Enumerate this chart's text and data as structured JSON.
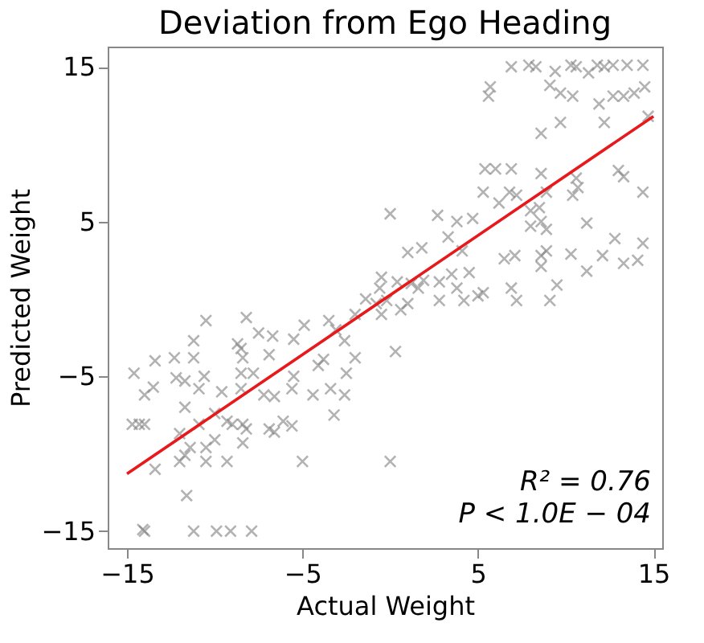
{
  "chart_data": {
    "type": "scatter",
    "title": "Deviation from Ego Heading",
    "xlabel": "Actual Weight",
    "ylabel": "Predicted Weight",
    "xlim": [
      -16.1,
      15.5
    ],
    "ylim": [
      -16.1,
      16.3
    ],
    "xticks": [
      -15,
      -5,
      5,
      15
    ],
    "yticks": [
      -15,
      -5,
      5,
      15
    ],
    "grid": false,
    "marker": "cross",
    "annotations": [
      "R² = 0.76",
      "P < 1.0E − 04"
    ],
    "series": [
      {
        "color": "#808080",
        "x": [
          6.9,
          7.9,
          8.3,
          9.4,
          10.3,
          10.6,
          11.3,
          11.8,
          12.2,
          12.7,
          13.5,
          14.4,
          5.7,
          5.6,
          9.1,
          9.7,
          10.4,
          11.9,
          12.7,
          13.3,
          13.9,
          14.5,
          14.7,
          12.2,
          9.7,
          8.6,
          5.4,
          6.0,
          6.9,
          8.6,
          5.3,
          6.8,
          7.2,
          6.2,
          8.0,
          8.5,
          8.6,
          8.0,
          8.9,
          8.9,
          10.6,
          10.4,
          10.7,
          11.2,
          13.0,
          13.3,
          14.4,
          0.0,
          2.7,
          3.8,
          4.7,
          3.3,
          4.1,
          1.0,
          1.8,
          6.5,
          7.1,
          8.6,
          8.9,
          8.6,
          10.3,
          11.2,
          12.1,
          12.8,
          13.3,
          14.1,
          14.4,
          -0.5,
          0.4,
          1.2,
          1.9,
          2.8,
          3.5,
          4.5,
          3.8,
          4.2,
          5.0,
          5.3,
          2.8,
          6.9,
          7.2,
          9.1,
          9.5,
          -0.8,
          -0.2,
          0.6,
          1.0,
          1.6,
          -0.5,
          -10.5,
          -8.2,
          -14.6,
          -13.5,
          -13.4,
          -12.3,
          -11.2,
          -11.2,
          -12.2,
          -11.7,
          -14.0,
          -10.6,
          -10.9,
          -11.7,
          -9.6,
          -10.0,
          -8.7,
          -8.5,
          -8.4,
          -7.5,
          -6.7,
          -6.9,
          -5.5,
          -4.9,
          -8.5,
          -7.8,
          -8.5,
          -7.2,
          -6.6,
          -5.6,
          -5.5,
          -4.1,
          -3.8,
          -4.4,
          -3.4,
          -2.6,
          -2.5,
          -2.0,
          -2.6,
          -3.5,
          -3.1,
          -14.7,
          -14.3,
          -14.0,
          -10.9,
          -9.3,
          -9.0,
          -8.4,
          -8.2,
          -6.9,
          -6.6,
          -6.1,
          -5.6,
          -3.2,
          -12.0,
          -11.4,
          -11.7,
          -10.5,
          -10.0,
          -8.4,
          -12.0,
          -13.4,
          -10.5,
          -9.3,
          -5.0,
          -11.6,
          -14.1,
          -14.0,
          -11.2,
          -9.9,
          -9.1,
          -7.9,
          -2.0,
          -1.4,
          -0.6,
          0.3,
          0.0
        ],
        "values": [
          15.0,
          15.1,
          15.0,
          14.7,
          15.1,
          15.0,
          14.6,
          15.1,
          15.0,
          15.1,
          15.1,
          15.1,
          13.7,
          13.1,
          13.8,
          13.3,
          13.1,
          12.6,
          13.1,
          13.1,
          13.3,
          13.7,
          11.8,
          11.4,
          11.4,
          10.7,
          8.4,
          8.4,
          8.4,
          8.1,
          6.9,
          6.9,
          6.7,
          6.2,
          5.7,
          5.9,
          5.0,
          4.7,
          4.5,
          6.9,
          7.8,
          6.7,
          7.2,
          4.9,
          8.3,
          7.9,
          6.9,
          5.5,
          5.4,
          5.0,
          5.2,
          4.0,
          3.1,
          3.0,
          3.3,
          2.6,
          2.8,
          2.8,
          3.1,
          2.1,
          2.9,
          1.8,
          2.8,
          3.9,
          2.3,
          2.5,
          3.6,
          1.4,
          1.1,
          1.0,
          1.2,
          1.1,
          1.6,
          1.7,
          0.7,
          -0.1,
          0.2,
          0.4,
          -0.1,
          0.7,
          -0.1,
          -0.1,
          0.9,
          -0.3,
          -0.1,
          -0.7,
          -0.3,
          0.7,
          -1.0,
          -1.4,
          -1.2,
          -4.8,
          -5.7,
          -4.0,
          -3.8,
          -2.7,
          -3.8,
          -5.1,
          -5.3,
          -6.2,
          -5.0,
          -5.8,
          -7.0,
          -6.0,
          -7.4,
          -2.9,
          -3.2,
          -3.8,
          -2.2,
          -2.4,
          -3.6,
          -2.6,
          -1.7,
          -4.8,
          -4.8,
          -5.8,
          -6.2,
          -6.3,
          -5.8,
          -5.0,
          -4.3,
          -3.9,
          -6.2,
          -5.8,
          -6.2,
          -4.8,
          -3.8,
          -2.7,
          -1.4,
          -2.0,
          -8.1,
          -8.1,
          -8.1,
          -8.1,
          -7.9,
          -8.1,
          -8.1,
          -8.4,
          -8.4,
          -8.6,
          -7.9,
          -8.2,
          -7.5,
          -8.7,
          -9.6,
          -10.1,
          -9.6,
          -9.1,
          -9.3,
          -10.5,
          -11.0,
          -10.5,
          -10.5,
          -10.5,
          -12.7,
          -14.9,
          -15.0,
          -15.0,
          -15.0,
          -15.0,
          -15.0,
          -1.0,
          0.0,
          0.7,
          -3.4,
          -10.5
        ]
      },
      {
        "type": "line",
        "color": "#e8191b",
        "x": [
          -15,
          15
        ],
        "values": [
          -11.3,
          11.8
        ],
        "marker": "none",
        "line_style": "solid"
      }
    ]
  }
}
